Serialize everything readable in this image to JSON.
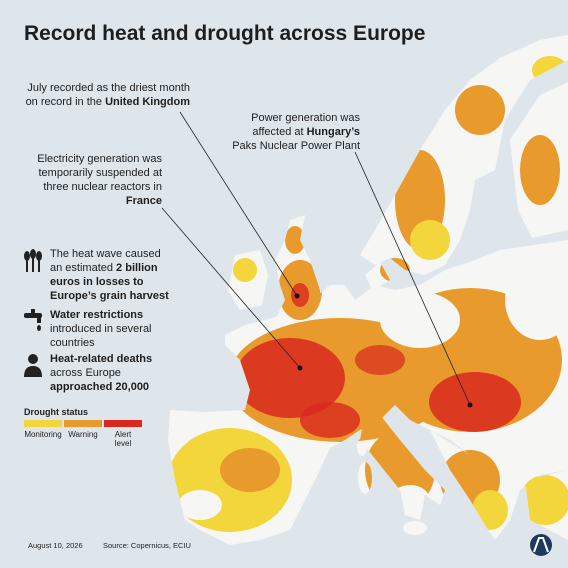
{
  "title": "Record heat and drought across Europe",
  "annotations": [
    {
      "parts": [
        {
          "text": "July recorded as the driest month\non record in the ",
          "bold": false
        },
        {
          "text": "United Kingdom",
          "bold": true
        }
      ]
    },
    {
      "parts": [
        {
          "text": "Power generation was\naffected at ",
          "bold": false
        },
        {
          "text": "Hungary’s",
          "bold": true
        },
        {
          "text": "\nPaks Nuclear Power Plant",
          "bold": false
        }
      ]
    },
    {
      "parts": [
        {
          "text": "Electricity generation was\ntemporarily suspended at\nthree nuclear reactors in\n",
          "bold": false
        },
        {
          "text": "France",
          "bold": true
        }
      ]
    }
  ],
  "facts": [
    {
      "parts": [
        {
          "text": "The heat wave caused\nan estimated ",
          "bold": false
        },
        {
          "text": "2 billion\neuros in losses to\nEurope’s grain harvest",
          "bold": true
        }
      ]
    },
    {
      "parts": [
        {
          "text": "Water restrictions",
          "bold": true
        },
        {
          "text": "\nintroduced in several\ncountries",
          "bold": false
        }
      ]
    },
    {
      "parts": [
        {
          "text": "Heat-related deaths",
          "bold": true
        },
        {
          "text": "\nacross Europe\n",
          "bold": false
        },
        {
          "text": "approached 20,000",
          "bold": true
        }
      ]
    }
  ],
  "legend": {
    "title": "Drought status",
    "items": [
      {
        "label": "Monitoring",
        "color": "#f3d63c"
      },
      {
        "label": "Warning",
        "color": "#e89a2c"
      },
      {
        "label": "Alert\nlevel",
        "color": "#d9291e"
      }
    ]
  },
  "footer": {
    "date": "August 10, 2026",
    "source": "Source: Copernicus, ECIU"
  }
}
